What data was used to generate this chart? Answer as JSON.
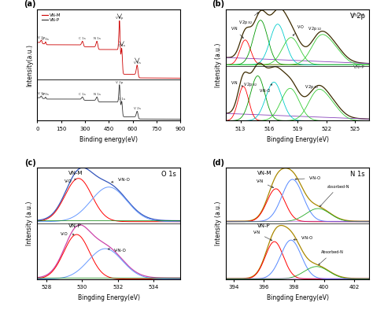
{
  "panel_a": {
    "label": "(a)",
    "xlabel": "Binding energy(eV)",
    "ylabel": "Intensity(a.u.)",
    "legend_vnm": "VN-M",
    "legend_vnp": "VN-P",
    "color_vnm": "#cc0000",
    "color_vnp": "#333333",
    "xrange": [
      0,
      900
    ],
    "xticks": [
      0,
      150,
      300,
      450,
      600,
      750,
      900
    ]
  },
  "panel_b": {
    "label": "(b)",
    "title": "V 2p",
    "xlabel": "Bingding Energy(eV)",
    "ylabel": "Intensity (a.u.)",
    "xrange": [
      511.5,
      526.5
    ],
    "xticks": [
      513,
      516,
      519,
      522,
      525
    ]
  },
  "panel_c": {
    "label": "(c)",
    "title": "O 1s",
    "xlabel": "Bingding Energy(eV)",
    "ylabel": "Intensity (a.u.)",
    "xrange": [
      527.5,
      535.5
    ],
    "xticks": [
      528,
      530,
      532,
      534
    ]
  },
  "panel_d": {
    "label": "(d)",
    "title": "N 1s",
    "xlabel": "Bingding Energy(eV)",
    "ylabel": "Intensity (a.u.)",
    "xrange": [
      393.5,
      403
    ],
    "xticks": [
      394,
      396,
      398,
      400,
      402
    ]
  }
}
